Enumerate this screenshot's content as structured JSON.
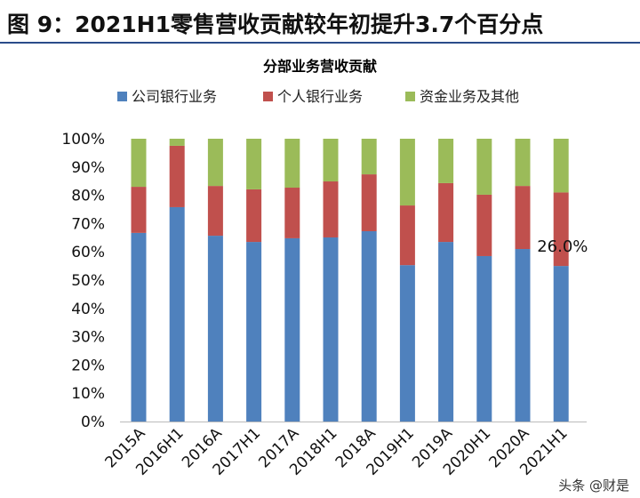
{
  "figure_title": "图 9：2021H1零售营收贡献较年初提升3.7个百分点",
  "watermark": "头条 @财是",
  "chart_data": {
    "type": "bar",
    "stacked": true,
    "title": "分部业务营收贡献",
    "legend_position": "top",
    "categories": [
      "2015A",
      "2016H1",
      "2016A",
      "2017H1",
      "2017A",
      "2018H1",
      "2018A",
      "2019H1",
      "2019A",
      "2020H1",
      "2020A",
      "2021H1"
    ],
    "series": [
      {
        "name": "公司银行业务",
        "color": "#4f81bd",
        "values": [
          66.7,
          75.8,
          65.7,
          63.5,
          64.8,
          65.1,
          67.3,
          55.3,
          63.5,
          58.5,
          61.0,
          55.0
        ]
      },
      {
        "name": "个人银行业务",
        "color": "#c0504d",
        "values": [
          16.3,
          21.7,
          17.6,
          18.6,
          17.9,
          19.8,
          20.1,
          21.1,
          20.8,
          21.7,
          22.3,
          26.0
        ]
      },
      {
        "name": "资金业务及其他",
        "color": "#9bbb59",
        "values": [
          17.0,
          2.5,
          16.7,
          17.9,
          17.3,
          15.1,
          12.6,
          23.6,
          15.7,
          19.8,
          16.7,
          19.0
        ]
      }
    ],
    "ylim": [
      0,
      100
    ],
    "yticks": [
      "0%",
      "10%",
      "20%",
      "30%",
      "40%",
      "50%",
      "60%",
      "70%",
      "80%",
      "90%",
      "100%"
    ],
    "annotations": [
      {
        "category": "2021H1",
        "series": "个人银行业务",
        "text": "26.0%"
      }
    ],
    "grid": false
  }
}
